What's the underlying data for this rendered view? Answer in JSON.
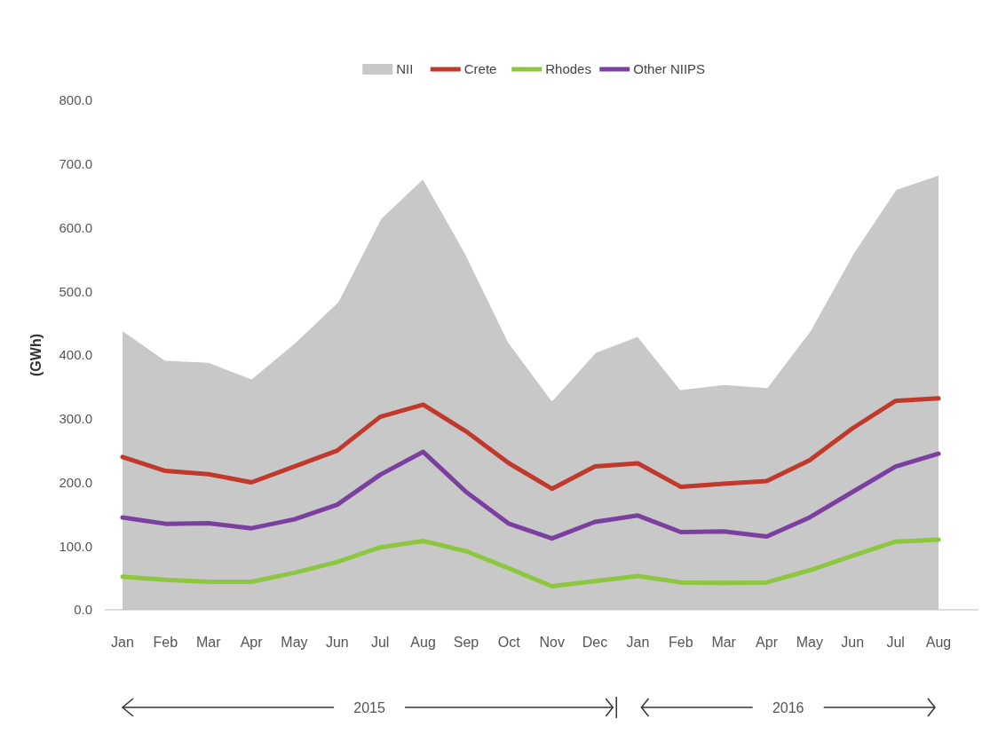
{
  "chart_data": {
    "type": "line",
    "ylabel": "(GWh)",
    "categories": [
      "Jan",
      "Feb",
      "Mar",
      "Apr",
      "May",
      "Jun",
      "Jul",
      "Aug",
      "Sep",
      "Oct",
      "Nov",
      "Dec",
      "Jan",
      "Feb",
      "Mar",
      "Apr",
      "May",
      "Jun",
      "Jul",
      "Aug"
    ],
    "series": [
      {
        "name": "NII",
        "type": "area",
        "color": "#c8c8c8",
        "values": [
          440,
          393,
          390,
          364,
          420,
          484,
          615,
          679,
          560,
          421,
          330,
          405,
          431,
          347,
          355,
          350,
          439,
          560,
          661,
          684
        ]
      },
      {
        "name": "Crete",
        "color": "#c0392b",
        "values": [
          240,
          218,
          213,
          200,
          225,
          250,
          303,
          322,
          280,
          230,
          190,
          225,
          230,
          193,
          198,
          202,
          235,
          285,
          328,
          332
        ]
      },
      {
        "name": "Rhodes",
        "color": "#8dc63f",
        "values": [
          52,
          47,
          44,
          44,
          58,
          75,
          98,
          108,
          92,
          65,
          37,
          45,
          53,
          43,
          42,
          43,
          62,
          85,
          107,
          110
        ]
      },
      {
        "name": "Other NIIPS",
        "color": "#7b3fa0",
        "values": [
          145,
          135,
          136,
          128,
          142,
          165,
          212,
          248,
          185,
          135,
          112,
          138,
          148,
          122,
          123,
          115,
          145,
          185,
          225,
          245
        ]
      }
    ],
    "ylim": [
      0,
      800
    ],
    "yticks": [
      {
        "value": 0,
        "label": "0.0"
      },
      {
        "value": 100,
        "label": "100.0"
      },
      {
        "value": 200,
        "label": "200.0"
      },
      {
        "value": 300,
        "label": "300.0"
      },
      {
        "value": 400,
        "label": "400.0"
      },
      {
        "value": 500,
        "label": "500.0"
      },
      {
        "value": 600,
        "label": "600.0"
      },
      {
        "value": 700,
        "label": "700.0"
      },
      {
        "value": 800,
        "label": "800.0"
      }
    ],
    "legend": "top",
    "grid": false,
    "marker": "none",
    "line_style": "solid",
    "annotations": [
      "2015",
      "2016"
    ]
  }
}
